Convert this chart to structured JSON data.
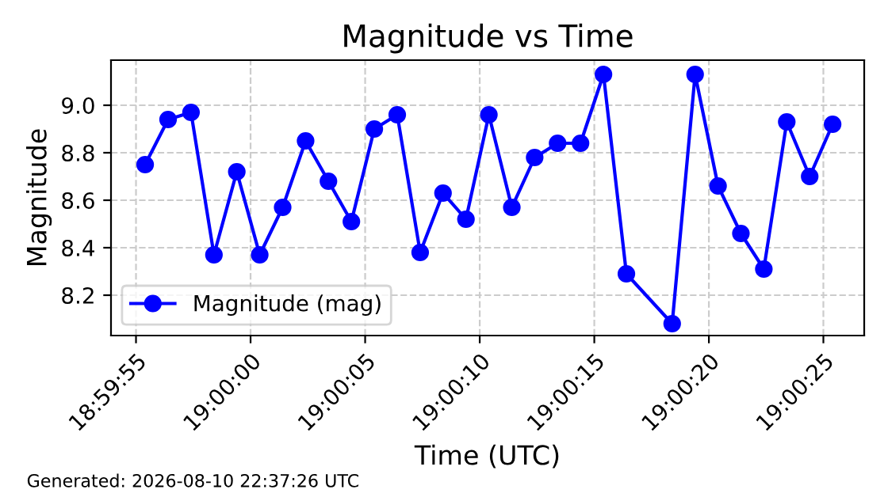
{
  "chart_data": {
    "type": "line",
    "title": "Magnitude vs Time",
    "xlabel": "Time (UTC)",
    "ylabel": "Magnitude",
    "x": [
      18.998722,
      18.999,
      18.999278,
      18.999556,
      18.999833,
      19.000111,
      19.000389,
      19.000667,
      19.000944,
      19.001222,
      19.0015,
      19.001778,
      19.002056,
      19.002333,
      19.002611,
      19.002889,
      19.003167,
      19.003444,
      19.003722,
      19.004,
      19.004278,
      19.004556,
      19.005111,
      19.005389,
      19.005667,
      19.005944,
      19.006222,
      19.0065,
      19.006778,
      19.007056
    ],
    "series": [
      {
        "name": "Magnitude (mag)",
        "color": "#0000ff",
        "values": [
          8.75,
          8.94,
          8.97,
          8.37,
          8.72,
          8.37,
          8.57,
          8.85,
          8.68,
          8.51,
          8.9,
          8.96,
          8.38,
          8.63,
          8.52,
          8.96,
          8.57,
          8.78,
          8.84,
          8.84,
          9.13,
          8.29,
          8.08,
          9.13,
          8.66,
          8.46,
          8.31,
          8.93,
          8.7,
          8.92
        ]
      }
    ],
    "xlim": [
      18.998308,
      19.007439
    ],
    "xticks": [
      {
        "value": 18.998611,
        "label": "18:59:55"
      },
      {
        "value": 19.0,
        "label": "19:00:00"
      },
      {
        "value": 19.001389,
        "label": "19:00:05"
      },
      {
        "value": 19.002778,
        "label": "19:00:10"
      },
      {
        "value": 19.004167,
        "label": "19:00:15"
      },
      {
        "value": 19.005556,
        "label": "19:00:20"
      },
      {
        "value": 19.006944,
        "label": "19:00:25"
      }
    ],
    "ylim": [
      8.03,
      9.19
    ],
    "yticks": [
      {
        "value": 8.2,
        "label": "8.2"
      },
      {
        "value": 8.4,
        "label": "8.4"
      },
      {
        "value": 8.6,
        "label": "8.6"
      },
      {
        "value": 8.8,
        "label": "8.8"
      },
      {
        "value": 9.0,
        "label": "9.0"
      }
    ],
    "grid": true,
    "legend": "bottom left",
    "marker": "circle",
    "line_style": "solid",
    "annotations": [
      "Generated: 2026-08-10 22:37:26 UTC"
    ]
  }
}
